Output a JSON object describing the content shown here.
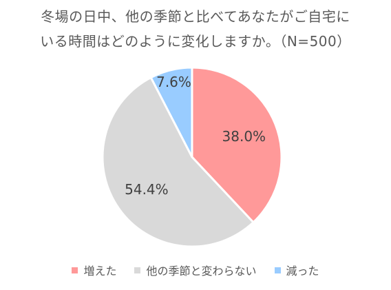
{
  "title_line1": "冬場の日中、他の季節と比べてあなたがご自宅に",
  "title_line2": "いる時間はどのように変化しますか。（N=500）",
  "chart_data": {
    "type": "pie",
    "title": "冬場の日中、他の季節と比べてあなたがご自宅にいる時間はどのように変化しますか。（N=500）",
    "legend_placement": "bottom",
    "start_angle_deg": 0,
    "direction": "clockwise",
    "slices": [
      {
        "label": "増えた",
        "value": 38.0,
        "display": "38.0%",
        "color": "#ff9999"
      },
      {
        "label": "他の季節と変わらない",
        "value": 54.4,
        "display": "54.4%",
        "color": "#d9d9d9"
      },
      {
        "label": "減った",
        "value": 7.6,
        "display": "7.6%",
        "color": "#99ccff"
      }
    ]
  }
}
